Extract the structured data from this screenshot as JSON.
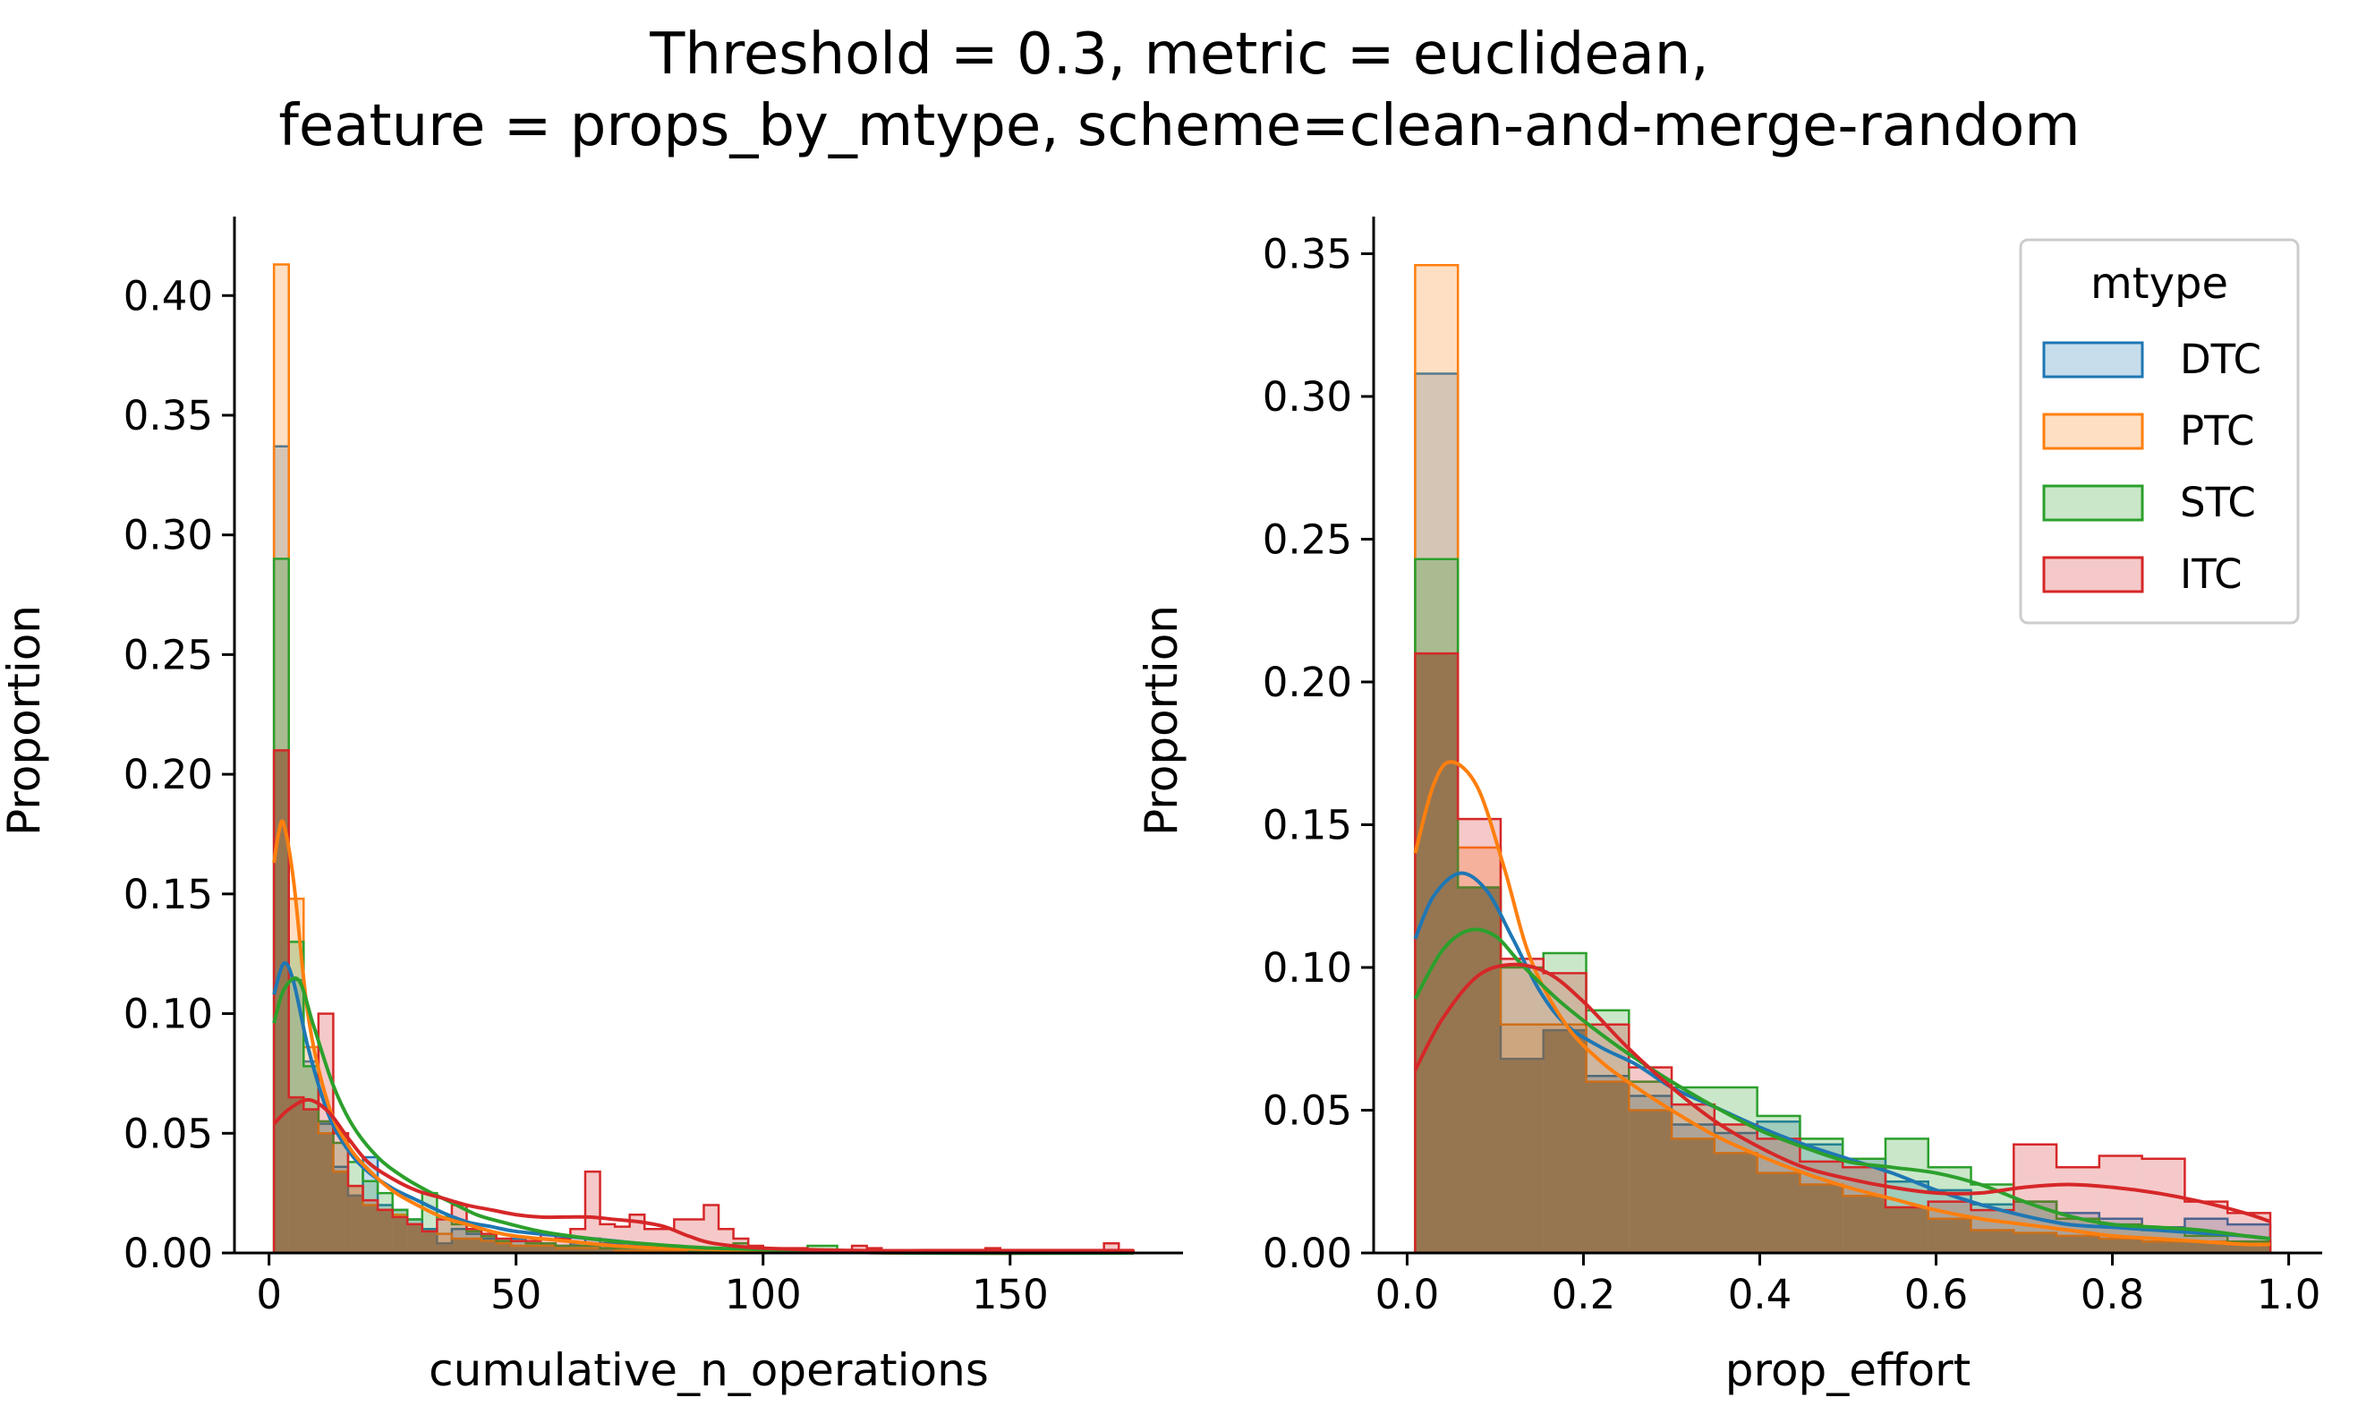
{
  "figure": {
    "title_line1": "Threshold = 0.3, metric = euclidean,",
    "title_line2": "feature = props_by_mtype, scheme=clean-and-merge-random"
  },
  "legend": {
    "title": "mtype",
    "entries": [
      "DTC",
      "PTC",
      "STC",
      "ITC"
    ]
  },
  "colors": {
    "DTC": "#1f77b4",
    "PTC": "#ff7f0e",
    "STC": "#2ca02c",
    "ITC": "#d62728"
  },
  "chart_data": [
    {
      "type": "histogram",
      "xlabel": "cumulative_n_operations",
      "ylabel": "Proportion",
      "xlim": [
        -7,
        185
      ],
      "ylim": [
        0,
        0.433
      ],
      "xticks": [
        0,
        50,
        100,
        150
      ],
      "xtick_labels": [
        "0",
        "50",
        "100",
        "150"
      ],
      "yticks": [
        0.0,
        0.05,
        0.1,
        0.15,
        0.2,
        0.25,
        0.3,
        0.35,
        0.4
      ],
      "ytick_labels": [
        "0.00",
        "0.05",
        "0.10",
        "0.15",
        "0.20",
        "0.25",
        "0.30",
        "0.35",
        "0.40"
      ],
      "bin_edges": [
        1,
        4,
        7,
        10,
        13,
        16,
        19,
        22,
        25,
        28,
        31,
        34,
        37,
        40,
        43,
        46,
        49,
        52,
        55,
        58,
        61,
        64,
        67,
        70,
        73,
        76,
        79,
        82,
        85,
        88,
        91,
        94,
        97,
        100,
        103,
        106,
        109,
        112,
        115,
        118,
        121,
        124,
        127,
        130,
        133,
        136,
        139,
        142,
        145,
        148,
        151,
        154,
        157,
        160,
        163,
        166,
        169,
        172,
        175
      ],
      "series": [
        {
          "name": "DTC",
          "values": [
            0.337,
            0.114,
            0.08,
            0.054,
            0.036,
            0.024,
            0.04,
            0.02,
            0.018,
            0.014,
            0.01,
            0.004,
            0.01,
            0.008,
            0.006,
            0.004,
            0.006,
            0.004,
            0.003,
            0.003,
            0.004,
            0.006,
            0.004,
            0.004,
            0.003,
            0.003,
            0.002,
            0.002,
            0.002,
            0.002,
            0.001,
            0.001,
            0.001,
            0.001,
            0.001,
            0.001,
            0.001,
            0,
            0,
            0,
            0,
            0,
            0,
            0,
            0,
            0,
            0,
            0,
            0,
            0,
            0,
            0,
            0,
            0,
            0,
            0,
            0,
            0
          ],
          "kde_x": [
            1,
            3,
            5,
            8,
            12,
            16,
            20,
            25,
            30,
            35,
            40,
            45,
            50,
            60,
            70,
            80,
            100,
            130,
            175
          ],
          "kde_y": [
            0.108,
            0.121,
            0.113,
            0.085,
            0.058,
            0.043,
            0.034,
            0.027,
            0.022,
            0.017,
            0.013,
            0.011,
            0.009,
            0.007,
            0.005,
            0.003,
            0.001,
            0.0,
            0.0
          ]
        },
        {
          "name": "PTC",
          "values": [
            0.413,
            0.148,
            0.086,
            0.05,
            0.034,
            0.028,
            0.02,
            0.018,
            0.016,
            0.012,
            0.009,
            0.008,
            0.006,
            0.006,
            0.005,
            0.004,
            0.003,
            0.003,
            0.003,
            0.002,
            0.002,
            0.002,
            0.002,
            0.001,
            0.001,
            0.001,
            0.001,
            0.001,
            0.001,
            0,
            0,
            0,
            0,
            0,
            0,
            0,
            0,
            0,
            0,
            0,
            0,
            0,
            0,
            0,
            0,
            0,
            0,
            0,
            0,
            0,
            0,
            0,
            0,
            0,
            0,
            0,
            0,
            0
          ],
          "kde_x": [
            1,
            2,
            3,
            5,
            8,
            12,
            16,
            20,
            25,
            30,
            35,
            40,
            45,
            50,
            60,
            70,
            80,
            100,
            130,
            175
          ],
          "kde_y": [
            0.163,
            0.176,
            0.179,
            0.155,
            0.098,
            0.062,
            0.045,
            0.035,
            0.026,
            0.02,
            0.015,
            0.012,
            0.009,
            0.007,
            0.005,
            0.003,
            0.002,
            0.001,
            0.0,
            0.0
          ]
        },
        {
          "name": "STC",
          "values": [
            0.29,
            0.13,
            0.078,
            0.055,
            0.046,
            0.038,
            0.03,
            0.025,
            0.018,
            0.014,
            0.025,
            0.015,
            0.012,
            0.009,
            0.007,
            0.005,
            0.005,
            0.004,
            0.004,
            0.003,
            0.003,
            0.003,
            0.002,
            0.002,
            0.002,
            0.002,
            0.002,
            0.002,
            0.001,
            0.001,
            0.001,
            0.004,
            0.002,
            0.001,
            0.001,
            0.001,
            0.003,
            0.003,
            0.001,
            0,
            0,
            0,
            0,
            0,
            0,
            0,
            0,
            0,
            0,
            0,
            0,
            0,
            0,
            0,
            0,
            0,
            0,
            0
          ],
          "kde_x": [
            1,
            3,
            6,
            9,
            13,
            17,
            22,
            27,
            32,
            37,
            42,
            47,
            55,
            65,
            75,
            90,
            110,
            130,
            175
          ],
          "kde_y": [
            0.096,
            0.11,
            0.114,
            0.095,
            0.07,
            0.053,
            0.04,
            0.032,
            0.026,
            0.021,
            0.016,
            0.013,
            0.009,
            0.006,
            0.004,
            0.002,
            0.001,
            0.0,
            0.0
          ]
        },
        {
          "name": "ITC",
          "values": [
            0.21,
            0.065,
            0.06,
            0.1,
            0.05,
            0.028,
            0.022,
            0.018,
            0.015,
            0.012,
            0.009,
            0.014,
            0.02,
            0.01,
            0.008,
            0.006,
            0.005,
            0.005,
            0.008,
            0.006,
            0.01,
            0.034,
            0.012,
            0.011,
            0.016,
            0.01,
            0.01,
            0.014,
            0.014,
            0.02,
            0.01,
            0.006,
            0.003,
            0.002,
            0.002,
            0.002,
            0.001,
            0.001,
            0.001,
            0.003,
            0.002,
            0.001,
            0.001,
            0.001,
            0.001,
            0.001,
            0.001,
            0.001,
            0.002,
            0.001,
            0.001,
            0.001,
            0.001,
            0.001,
            0.001,
            0.001,
            0.004,
            0.001
          ],
          "kde_x": [
            1,
            4,
            8,
            12,
            16,
            20,
            25,
            30,
            35,
            40,
            45,
            50,
            55,
            60,
            65,
            70,
            75,
            80,
            85,
            90,
            100,
            120,
            140,
            160,
            175
          ],
          "kde_y": [
            0.054,
            0.06,
            0.064,
            0.059,
            0.048,
            0.038,
            0.031,
            0.026,
            0.023,
            0.02,
            0.018,
            0.016,
            0.015,
            0.015,
            0.015,
            0.014,
            0.013,
            0.011,
            0.007,
            0.004,
            0.002,
            0.001,
            0.001,
            0.001,
            0.001
          ]
        }
      ]
    },
    {
      "type": "histogram",
      "xlabel": "prop_effort",
      "ylabel": "Proportion",
      "xlim": [
        -0.038,
        1.038
      ],
      "ylim": [
        0,
        0.363
      ],
      "xticks": [
        0.0,
        0.2,
        0.4,
        0.6,
        0.8,
        1.0
      ],
      "xtick_labels": [
        "0.0",
        "0.2",
        "0.4",
        "0.6",
        "0.8",
        "1.0"
      ],
      "yticks": [
        0.0,
        0.05,
        0.1,
        0.15,
        0.2,
        0.25,
        0.3,
        0.35
      ],
      "ytick_labels": [
        "0.00",
        "0.05",
        "0.10",
        "0.15",
        "0.20",
        "0.25",
        "0.30",
        "0.35"
      ],
      "bin_edges": [
        0.0091,
        0.0576,
        0.1061,
        0.1546,
        0.2031,
        0.2516,
        0.3001,
        0.3486,
        0.3971,
        0.4456,
        0.4941,
        0.5426,
        0.5911,
        0.6396,
        0.6881,
        0.7366,
        0.7851,
        0.8336,
        0.8821,
        0.9306,
        0.9791
      ],
      "series": [
        {
          "name": "DTC",
          "values": [
            0.308,
            0.128,
            0.068,
            0.078,
            0.062,
            0.055,
            0.045,
            0.042,
            0.046,
            0.038,
            0.033,
            0.025,
            0.022,
            0.017,
            0.018,
            0.014,
            0.012,
            0.009,
            0.012,
            0.01
          ],
          "kde_x": [
            0.0091,
            0.03,
            0.06,
            0.09,
            0.12,
            0.15,
            0.18,
            0.22,
            0.26,
            0.3,
            0.35,
            0.4,
            0.45,
            0.5,
            0.55,
            0.6,
            0.65,
            0.7,
            0.75,
            0.8,
            0.85,
            0.9,
            0.95,
            0.979
          ],
          "kde_y": [
            0.11,
            0.125,
            0.133,
            0.127,
            0.11,
            0.092,
            0.08,
            0.072,
            0.066,
            0.058,
            0.051,
            0.044,
            0.038,
            0.033,
            0.028,
            0.022,
            0.017,
            0.013,
            0.01,
            0.009,
            0.008,
            0.007,
            0.006,
            0.005
          ]
        },
        {
          "name": "PTC",
          "values": [
            0.346,
            0.142,
            0.08,
            0.08,
            0.06,
            0.05,
            0.04,
            0.035,
            0.028,
            0.024,
            0.02,
            0.016,
            0.012,
            0.008,
            0.007,
            0.006,
            0.005,
            0.004,
            0.004,
            0.003
          ],
          "kde_x": [
            0.0091,
            0.03,
            0.05,
            0.08,
            0.11,
            0.14,
            0.18,
            0.22,
            0.26,
            0.3,
            0.35,
            0.4,
            0.45,
            0.5,
            0.55,
            0.6,
            0.65,
            0.7,
            0.75,
            0.8,
            0.85,
            0.9,
            0.95,
            0.979
          ],
          "kde_y": [
            0.14,
            0.164,
            0.172,
            0.163,
            0.135,
            0.103,
            0.08,
            0.067,
            0.058,
            0.05,
            0.041,
            0.034,
            0.028,
            0.023,
            0.019,
            0.015,
            0.012,
            0.01,
            0.008,
            0.006,
            0.005,
            0.004,
            0.003,
            0.003
          ]
        },
        {
          "name": "STC",
          "values": [
            0.243,
            0.128,
            0.1,
            0.105,
            0.085,
            0.06,
            0.058,
            0.058,
            0.048,
            0.04,
            0.033,
            0.04,
            0.03,
            0.024,
            0.018,
            0.012,
            0.01,
            0.008,
            0.006,
            0.004
          ],
          "kde_x": [
            0.0091,
            0.04,
            0.07,
            0.1,
            0.13,
            0.17,
            0.21,
            0.25,
            0.3,
            0.35,
            0.4,
            0.45,
            0.5,
            0.55,
            0.6,
            0.65,
            0.7,
            0.75,
            0.8,
            0.85,
            0.9,
            0.95,
            0.979
          ],
          "kde_y": [
            0.089,
            0.106,
            0.113,
            0.111,
            0.101,
            0.089,
            0.079,
            0.07,
            0.06,
            0.051,
            0.043,
            0.037,
            0.032,
            0.03,
            0.028,
            0.024,
            0.018,
            0.013,
            0.01,
            0.009,
            0.008,
            0.006,
            0.005
          ]
        },
        {
          "name": "ITC",
          "values": [
            0.21,
            0.152,
            0.103,
            0.098,
            0.08,
            0.065,
            0.052,
            0.045,
            0.04,
            0.032,
            0.03,
            0.016,
            0.018,
            0.015,
            0.038,
            0.03,
            0.034,
            0.033,
            0.018,
            0.014
          ],
          "kde_x": [
            0.0091,
            0.04,
            0.08,
            0.12,
            0.16,
            0.2,
            0.25,
            0.3,
            0.35,
            0.4,
            0.45,
            0.5,
            0.55,
            0.6,
            0.65,
            0.7,
            0.75,
            0.8,
            0.85,
            0.9,
            0.95,
            0.979
          ],
          "kde_y": [
            0.064,
            0.082,
            0.097,
            0.101,
            0.098,
            0.088,
            0.072,
            0.058,
            0.046,
            0.037,
            0.03,
            0.026,
            0.023,
            0.021,
            0.021,
            0.023,
            0.024,
            0.023,
            0.021,
            0.018,
            0.014,
            0.011
          ]
        }
      ]
    }
  ]
}
